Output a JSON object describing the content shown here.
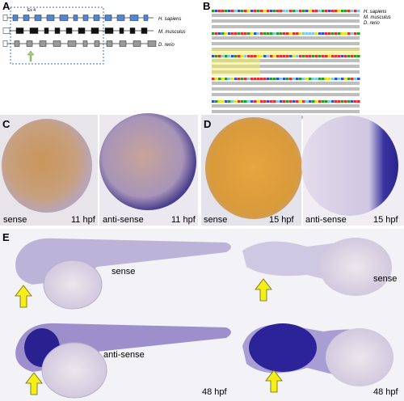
{
  "panel_a": {
    "label": "A",
    "exon_label": "Ex 4",
    "species": [
      "H. sapiens",
      "M. musculus",
      "D. rerio"
    ]
  },
  "panel_b": {
    "label": "B",
    "species": [
      "H. sapiens",
      "M. musculus",
      "D. rerio"
    ]
  },
  "panel_c": {
    "label": "C",
    "images": [
      {
        "condition": "sense",
        "stage": "11 hpf"
      },
      {
        "condition": "anti-sense",
        "stage": "11 hpf"
      }
    ]
  },
  "panel_d": {
    "label": "D",
    "images": [
      {
        "condition": "sense",
        "stage": "15 hpf"
      },
      {
        "condition": "anti-sense",
        "stage": "15 hpf"
      }
    ]
  },
  "panel_e": {
    "label": "E",
    "images": [
      {
        "condition": "sense"
      },
      {
        "condition": "sense"
      },
      {
        "condition": "anti-sense",
        "stage": "48 hpf"
      },
      {
        "stage": "48 hpf"
      }
    ]
  }
}
